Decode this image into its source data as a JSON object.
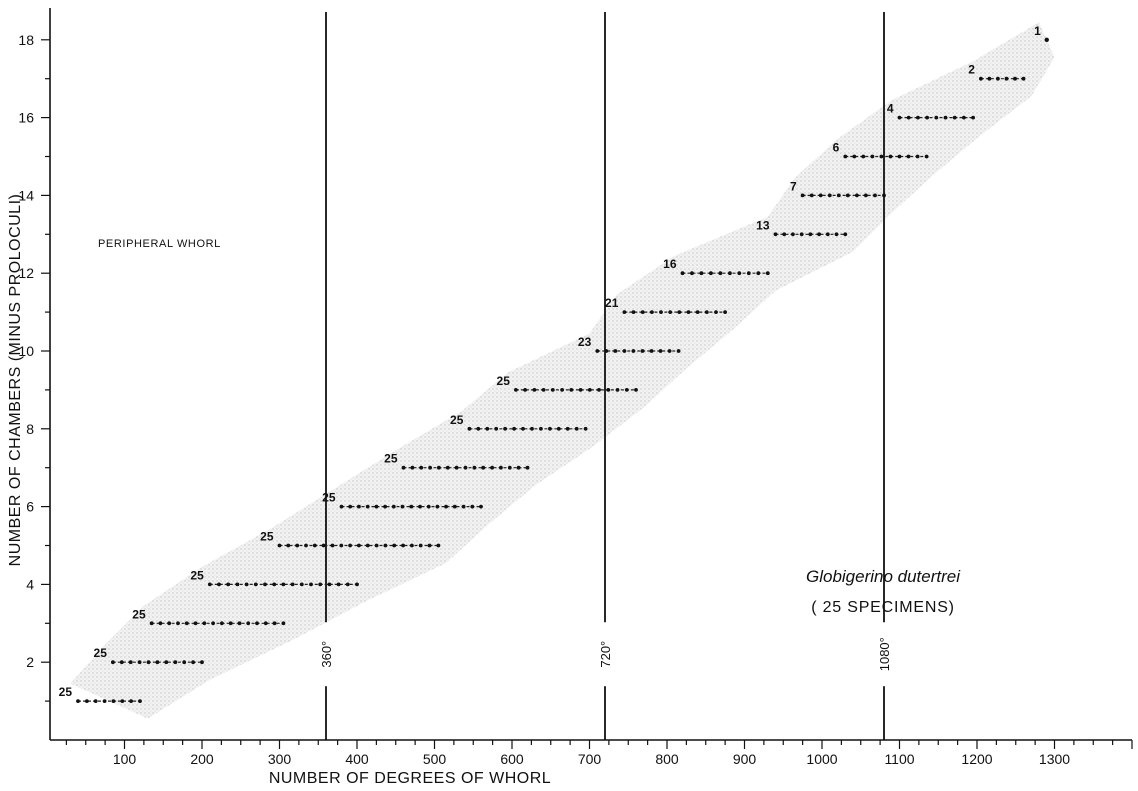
{
  "chart_data": {
    "type": "scatter",
    "title": "",
    "xlabel": "NUMBER OF DEGREES OF WHORL",
    "ylabel": "NUMBER OF CHAMBERS (MINUS PROLOCULI)",
    "xlim": [
      0,
      1400
    ],
    "ylim": [
      0,
      19
    ],
    "x_ticks": [
      100,
      200,
      300,
      400,
      500,
      600,
      700,
      800,
      900,
      1000,
      1100,
      1200,
      1300
    ],
    "x_tick_labels": [
      "100",
      "200",
      "300",
      "400",
      "500",
      "600",
      "700",
      "800",
      "900",
      "1000",
      "1100",
      "1200",
      "1300"
    ],
    "y_ticks": [
      2,
      4,
      6,
      8,
      10,
      12,
      14,
      16,
      18
    ],
    "y_tick_labels": [
      "2",
      "4",
      "6",
      "8",
      "10",
      "12",
      "14",
      "16",
      "18"
    ],
    "grid": false,
    "reference_lines": [
      {
        "x": 360,
        "label": "360°"
      },
      {
        "x": 720,
        "label": "720°"
      },
      {
        "x": 1080,
        "label": "1080°"
      }
    ],
    "annotations": {
      "region_label": "PERIPHERAL WHORL",
      "species": "Globigerino dutertrei",
      "specimens": "( 25 SPECIMENS)"
    },
    "chamber_ranges": [
      {
        "chambers": 1,
        "count_label": "25",
        "x_min": 40,
        "x_max": 120
      },
      {
        "chambers": 2,
        "count_label": "25",
        "x_min": 85,
        "x_max": 200
      },
      {
        "chambers": 3,
        "count_label": "25",
        "x_min": 135,
        "x_max": 305
      },
      {
        "chambers": 4,
        "count_label": "25",
        "x_min": 210,
        "x_max": 400
      },
      {
        "chambers": 5,
        "count_label": "25",
        "x_min": 300,
        "x_max": 505
      },
      {
        "chambers": 6,
        "count_label": "25",
        "x_min": 380,
        "x_max": 560
      },
      {
        "chambers": 7,
        "count_label": "25",
        "x_min": 460,
        "x_max": 620
      },
      {
        "chambers": 8,
        "count_label": "25",
        "x_min": 545,
        "x_max": 695
      },
      {
        "chambers": 9,
        "count_label": "25",
        "x_min": 605,
        "x_max": 760
      },
      {
        "chambers": 10,
        "count_label": "23",
        "x_min": 710,
        "x_max": 815
      },
      {
        "chambers": 11,
        "count_label": "21",
        "x_min": 745,
        "x_max": 875
      },
      {
        "chambers": 12,
        "count_label": "16",
        "x_min": 820,
        "x_max": 930
      },
      {
        "chambers": 13,
        "count_label": "13",
        "x_min": 940,
        "x_max": 1030
      },
      {
        "chambers": 14,
        "count_label": "7",
        "x_min": 975,
        "x_max": 1080
      },
      {
        "chambers": 15,
        "count_label": "6",
        "x_min": 1030,
        "x_max": 1135
      },
      {
        "chambers": 16,
        "count_label": "4",
        "x_min": 1100,
        "x_max": 1195
      },
      {
        "chambers": 17,
        "count_label": "2",
        "x_min": 1205,
        "x_max": 1260
      },
      {
        "chambers": 18,
        "count_label": "1",
        "x_min": 1290,
        "x_max": 1290
      }
    ]
  }
}
